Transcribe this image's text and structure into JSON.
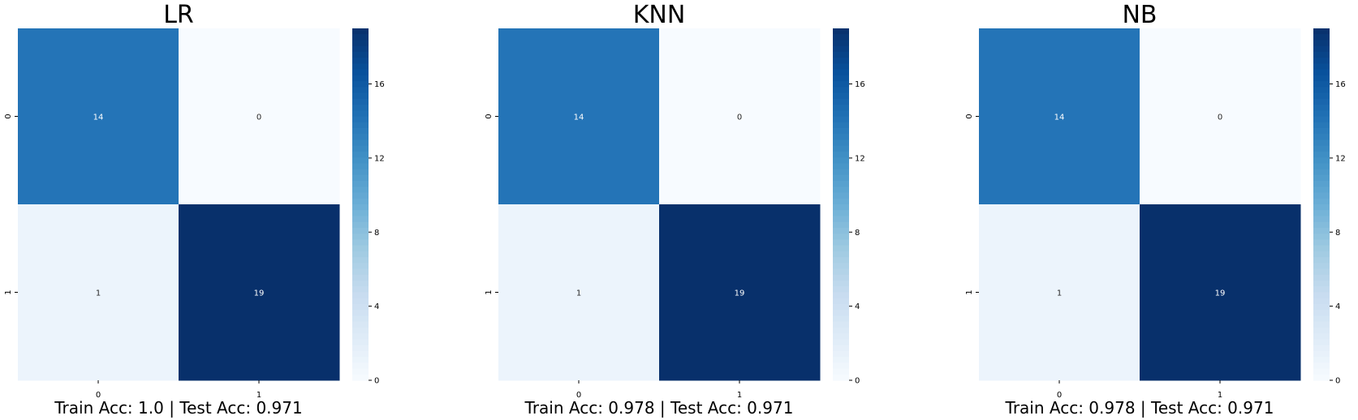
{
  "colorscale": {
    "name": "Blues",
    "stops": [
      "#f7fbff",
      "#deebf7",
      "#c6dbef",
      "#9ecae1",
      "#6baed6",
      "#4292c6",
      "#2171b5",
      "#08519c",
      "#08306b"
    ]
  },
  "chart_data": [
    {
      "type": "heatmap",
      "title": "LR",
      "xlabel": "Train Acc: 1.0  |  Test Acc: 0.971",
      "ylabel": "",
      "x_ticks": [
        "0",
        "1"
      ],
      "y_ticks": [
        "0",
        "1"
      ],
      "matrix": [
        [
          14,
          0
        ],
        [
          1,
          19
        ]
      ],
      "colorbar": {
        "range": [
          0,
          19
        ],
        "ticks": [
          "0",
          "4",
          "8",
          "12",
          "16"
        ]
      }
    },
    {
      "type": "heatmap",
      "title": "KNN",
      "xlabel": "Train Acc: 0.978  |  Test Acc: 0.971",
      "ylabel": "",
      "x_ticks": [
        "0",
        "1"
      ],
      "y_ticks": [
        "0",
        "1"
      ],
      "matrix": [
        [
          14,
          0
        ],
        [
          1,
          19
        ]
      ],
      "colorbar": {
        "range": [
          0,
          19
        ],
        "ticks": [
          "0",
          "4",
          "8",
          "12",
          "16"
        ]
      }
    },
    {
      "type": "heatmap",
      "title": "NB",
      "xlabel": "Train Acc: 0.978  |  Test Acc: 0.971",
      "ylabel": "",
      "x_ticks": [
        "0",
        "1"
      ],
      "y_ticks": [
        "0",
        "1"
      ],
      "matrix": [
        [
          14,
          0
        ],
        [
          1,
          19
        ]
      ],
      "colorbar": {
        "range": [
          0,
          19
        ],
        "ticks": [
          "0",
          "4",
          "8",
          "12",
          "16"
        ]
      }
    }
  ]
}
